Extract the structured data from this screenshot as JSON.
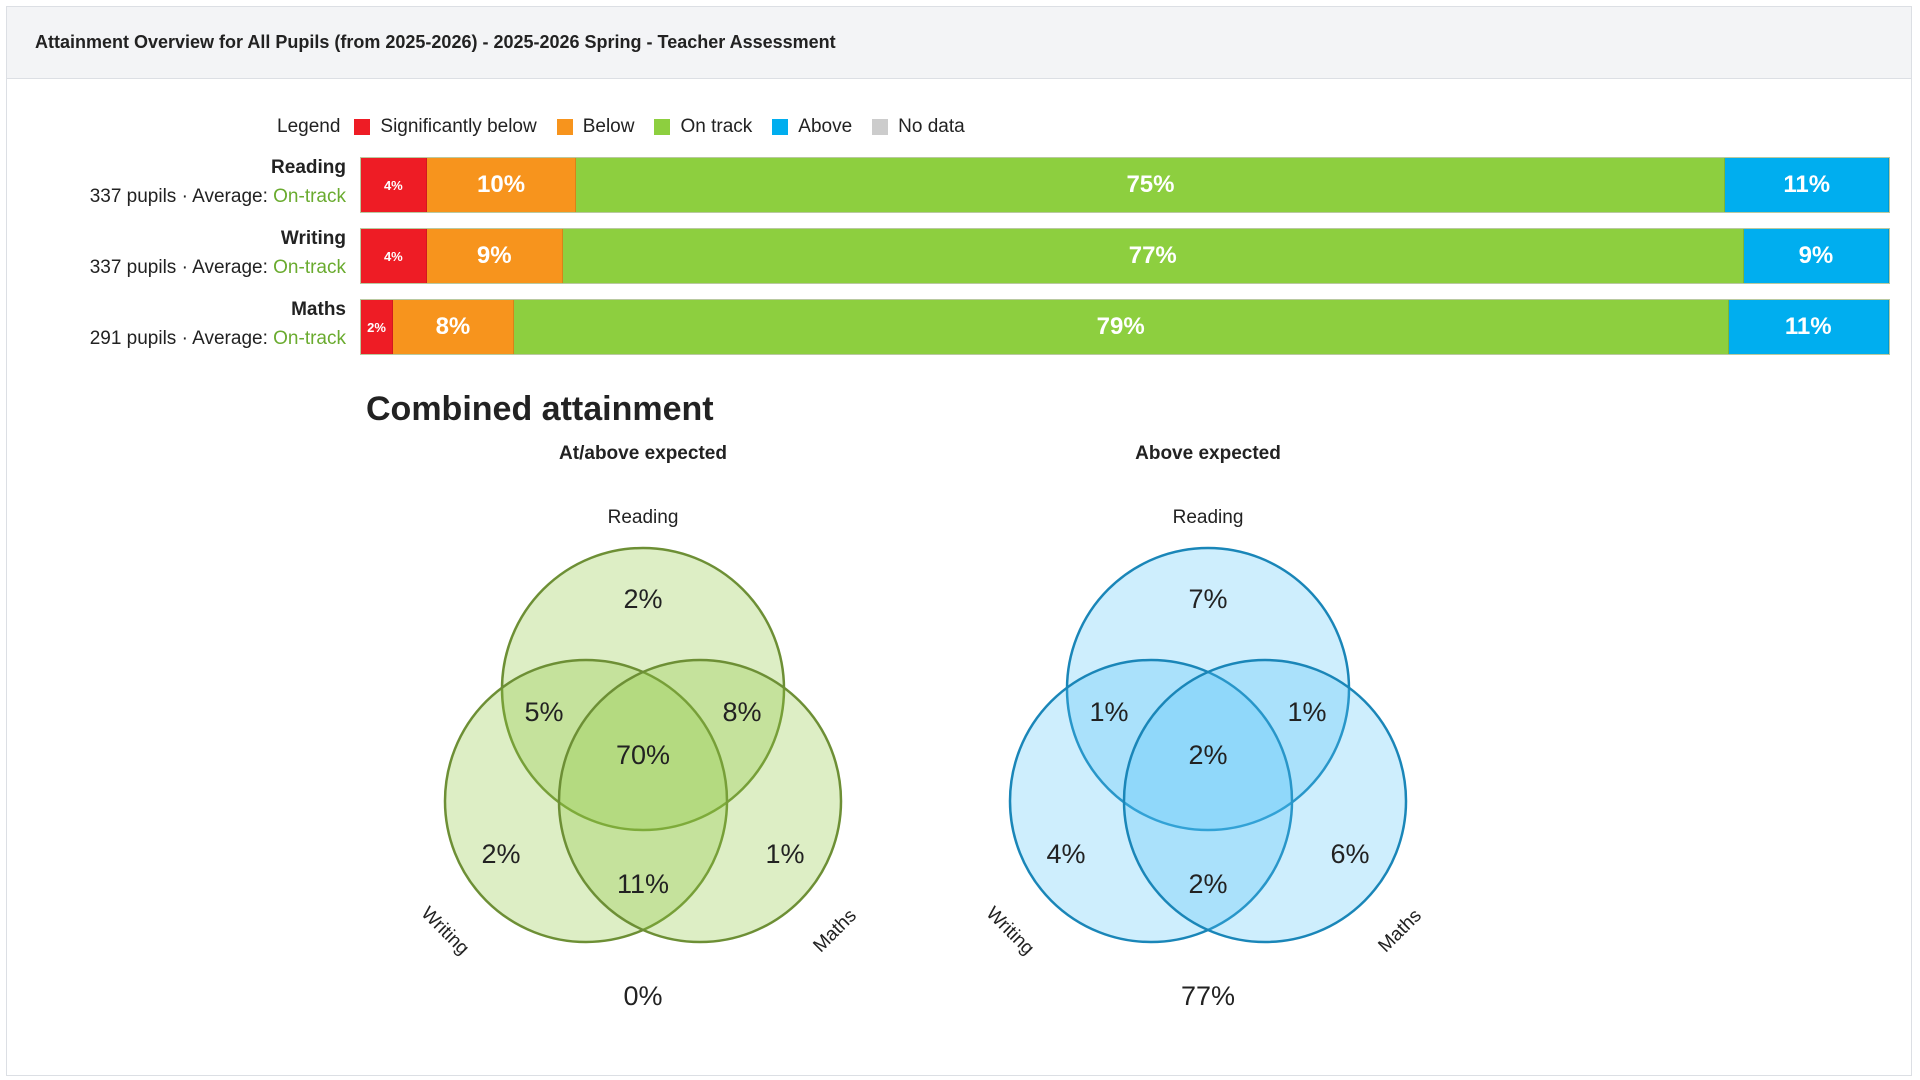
{
  "header": {
    "title": "Attainment Overview for All Pupils (from 2025-2026) - 2025-2026 Spring - Teacher Assessment"
  },
  "legend": {
    "title": "Legend",
    "items": [
      {
        "label": "Significantly below",
        "color": "#ee1c25"
      },
      {
        "label": "Below",
        "color": "#f7941d"
      },
      {
        "label": "On track",
        "color": "#8dcf3f"
      },
      {
        "label": "Above",
        "color": "#00aeef"
      },
      {
        "label": "No data",
        "color": "#cccccc"
      }
    ]
  },
  "rows": [
    {
      "subject": "Reading",
      "pupils": "337 pupils",
      "sep": " · Average: ",
      "average": "On-track",
      "segments": [
        {
          "label": "4%",
          "value": 4.3,
          "color": "#ee1c25",
          "small": true
        },
        {
          "label": "10%",
          "value": 9.8,
          "color": "#f7941d"
        },
        {
          "label": "75%",
          "value": 75.2,
          "color": "#8dcf3f"
        },
        {
          "label": "11%",
          "value": 10.7,
          "color": "#00aeef"
        }
      ]
    },
    {
      "subject": "Writing",
      "pupils": "337 pupils",
      "sep": " · Average: ",
      "average": "On-track",
      "segments": [
        {
          "label": "4%",
          "value": 4.3,
          "color": "#ee1c25",
          "small": true
        },
        {
          "label": "9%",
          "value": 8.9,
          "color": "#f7941d"
        },
        {
          "label": "77%",
          "value": 77.3,
          "color": "#8dcf3f"
        },
        {
          "label": "9%",
          "value": 9.5,
          "color": "#00aeef"
        }
      ]
    },
    {
      "subject": "Maths",
      "pupils": "291 pupils",
      "sep": " · Average: ",
      "average": "On-track",
      "segments": [
        {
          "label": "2%",
          "value": 2.1,
          "color": "#ee1c25",
          "small": true
        },
        {
          "label": "8%",
          "value": 7.9,
          "color": "#f7941d"
        },
        {
          "label": "79%",
          "value": 79.5,
          "color": "#8dcf3f"
        },
        {
          "label": "11%",
          "value": 10.5,
          "color": "#00aeef"
        }
      ]
    }
  ],
  "combined": {
    "title": "Combined attainment",
    "venns": [
      {
        "title": "At/above expected",
        "fill": "#8dc63f",
        "stroke": "#6d8f35",
        "fill_opacity": 0.3,
        "sets": {
          "top": "Reading",
          "left": "Writing",
          "right": "Maths"
        },
        "regions": {
          "reading_only": "2%",
          "reading_writing": "5%",
          "reading_maths": "8%",
          "all": "70%",
          "writing_only": "2%",
          "maths_only": "1%",
          "writing_maths": "11%",
          "none": "0%"
        }
      },
      {
        "title": "Above expected",
        "fill": "#4fc3f7",
        "stroke": "#1a86b8",
        "fill_opacity": 0.28,
        "sets": {
          "top": "Reading",
          "left": "Writing",
          "right": "Maths"
        },
        "regions": {
          "reading_only": "7%",
          "reading_writing": "1%",
          "reading_maths": "1%",
          "all": "2%",
          "writing_only": "4%",
          "maths_only": "6%",
          "writing_maths": "2%",
          "none": "77%"
        }
      }
    ]
  }
}
